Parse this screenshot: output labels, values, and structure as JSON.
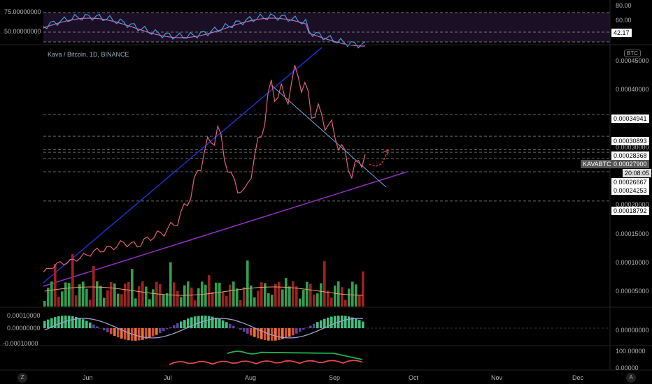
{
  "header": {
    "symbol_title": "Kava / Bitcoin, 1D, BINANCE",
    "currency_badge": "BTC",
    "ticker_tag": "KAVABTC",
    "countdown": "20:08:05"
  },
  "colors": {
    "background": "#000000",
    "rsi_band": "#1a0f24",
    "rsi_line_1": "#3aa0d8",
    "rsi_line_2": "#c06bbf",
    "price_line": "#e06080",
    "upper_trend": "#2030c8",
    "lower_trend": "#9030c0",
    "resistance_line": "#6aa8d8",
    "projection": "#e04040",
    "bull": "#30a050",
    "bear": "#a02020",
    "level_box": "#ffffff",
    "ticker_box": "#555555",
    "osc_purple": "#6040a0",
    "osc_green": "#40c080",
    "osc_red": "#e04040",
    "osc_orange": "#e08020",
    "lower_line": "#e04848",
    "lower_line_green": "#20b050"
  },
  "rsi_panel": {
    "left_labels": [
      "75.00000000",
      "50.00000000"
    ],
    "right_labels": [
      "80.00",
      "60.00",
      "42.17"
    ]
  },
  "price_axis": {
    "labels": [
      "0.00045000",
      "0.00040000",
      "0.00030000",
      "0.00020000",
      "0.00015000",
      "0.00010000",
      "0.00005000"
    ],
    "levels": [
      "0.00034941",
      "0.00030893",
      "0.00028368",
      "0.00027900",
      "0.00026667",
      "0.00024253",
      "0.00018792"
    ]
  },
  "osc_panel": {
    "left_labels": [
      "0.00010000",
      "0.00000000",
      "-0.00010000"
    ],
    "right_labels": [
      "0.00000000"
    ]
  },
  "lower_panel": {
    "right_labels": [
      "100.00000",
      "0.00000"
    ]
  },
  "time_axis": {
    "labels": [
      "Jun",
      "Jul",
      "Aug",
      "Sep",
      "Oct",
      "Nov",
      "Dec"
    ]
  },
  "corner_buttons": {
    "left": "Z",
    "right": "A"
  },
  "chart_data": {
    "type": "line",
    "title": "Kava / Bitcoin, 1D, BINANCE",
    "ylim": [
      0,
      0.00045
    ],
    "x_dates": [
      "2019-05-15",
      "2019-05-20",
      "2019-05-25",
      "2019-05-30",
      "2019-06-04",
      "2019-06-09",
      "2019-06-14",
      "2019-06-19",
      "2019-06-24",
      "2019-06-29",
      "2019-07-04",
      "2019-07-09",
      "2019-07-14",
      "2019-07-19",
      "2019-07-24",
      "2019-07-29",
      "2019-08-03",
      "2019-08-08",
      "2019-08-13",
      "2019-08-18",
      "2019-08-23",
      "2019-08-28",
      "2019-09-02",
      "2019-09-07",
      "2019-09-12"
    ],
    "series": [
      {
        "values": [
          5.5e-05,
          7e-05,
          7.5e-05,
          8.5e-05,
          9.5e-05,
          0.0001,
          0.00011,
          0.000105,
          0.00012,
          0.00013,
          0.00015,
          0.0002,
          0.00028,
          0.00032,
          0.00023,
          0.0002,
          0.00029,
          0.0004,
          0.00038,
          0.00043,
          0.00036,
          0.00034,
          0.0003,
          0.00024,
          0.000275
        ]
      }
    ],
    "horizontal_levels": [
      0.00034941,
      0.00030893,
      0.00028368,
      0.000279,
      0.00026667,
      0.00024253,
      0.00018792
    ],
    "last_price": 0.000279,
    "rsi_last": 42.17,
    "grid": false
  }
}
